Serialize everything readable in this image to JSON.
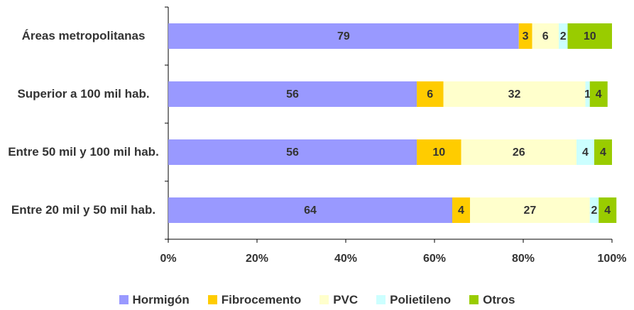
{
  "chart_data": {
    "type": "bar",
    "orientation": "horizontal",
    "stacked": true,
    "categories": [
      "Áreas metropolitanas",
      "Superior a 100 mil hab.",
      "Entre 50 mil y 100 mil hab.",
      "Entre 20 mil y 50 mil hab."
    ],
    "series": [
      {
        "name": "Hormigón",
        "color": "#9999ff",
        "values": [
          79,
          56,
          56,
          64
        ]
      },
      {
        "name": "Fibrocemento",
        "color": "#ffcc00",
        "values": [
          3,
          6,
          10,
          4
        ]
      },
      {
        "name": "PVC",
        "color": "#ffffcc",
        "values": [
          6,
          32,
          26,
          27
        ]
      },
      {
        "name": "Polietileno",
        "color": "#ccffff",
        "values": [
          2,
          1,
          4,
          2
        ]
      },
      {
        "name": "Otros",
        "color": "#99cc00",
        "values": [
          10,
          4,
          4,
          4
        ]
      }
    ],
    "xlim": [
      0,
      100
    ],
    "xticks": [
      {
        "value": 0,
        "label": "0%"
      },
      {
        "value": 20,
        "label": "20%"
      },
      {
        "value": 40,
        "label": "40%"
      },
      {
        "value": 60,
        "label": "60%"
      },
      {
        "value": 80,
        "label": "80%"
      },
      {
        "value": 100,
        "label": "100%"
      }
    ],
    "legend": "bottom"
  }
}
